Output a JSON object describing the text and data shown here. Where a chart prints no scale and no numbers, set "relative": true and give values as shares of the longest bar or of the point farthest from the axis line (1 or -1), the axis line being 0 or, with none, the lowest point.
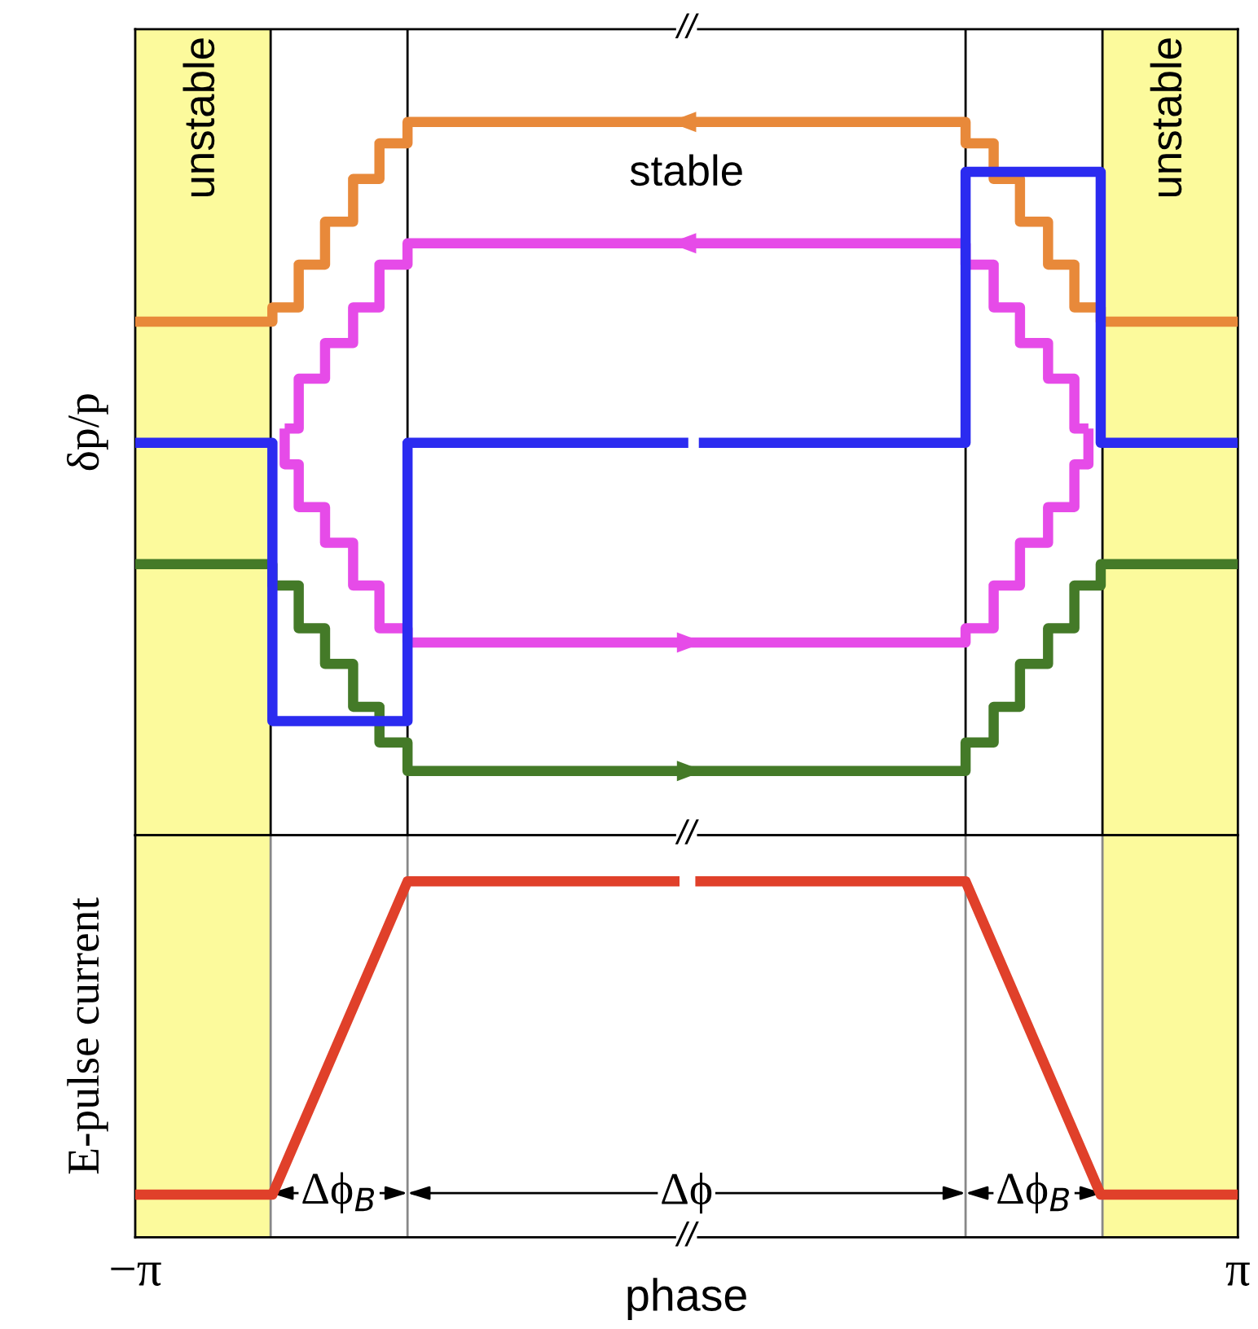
{
  "chart_data": [
    {
      "type": "line",
      "ylabel": "δp/p",
      "relative": true,
      "xlim": [
        -3.1416,
        3.1416
      ],
      "tick_labels": false,
      "series": [
        {
          "color": "#e8893a",
          "x": [
            3.1416,
            2.36,
            2.36,
            2.21,
            2.21,
            2.06,
            2.06,
            1.9,
            1.9,
            1.75,
            1.75,
            1.59,
            1.59,
            -1.59,
            -1.59,
            -1.75,
            -1.75,
            -1.9,
            -1.9,
            -2.06,
            -2.06,
            -2.21,
            -2.21,
            -2.36,
            -2.36,
            -3.1416
          ],
          "values": [
            0.72,
            0.72,
            0.74,
            0.74,
            0.8,
            0.8,
            0.86,
            0.86,
            0.92,
            0.92,
            0.97,
            0.97,
            1.0,
            1.0,
            0.97,
            0.97,
            0.92,
            0.92,
            0.86,
            0.86,
            0.8,
            0.8,
            0.74,
            0.74,
            0.72,
            0.72
          ]
        },
        {
          "color": "#e64be8",
          "x": [
            1.59,
            -1.59,
            -1.59,
            -1.75,
            -1.75,
            -1.9,
            -1.9,
            -2.06,
            -2.06,
            -2.21,
            -2.21,
            -2.29
          ],
          "values": [
            0.83,
            0.83,
            0.8,
            0.8,
            0.74,
            0.74,
            0.69,
            0.69,
            0.64,
            0.64,
            0.57,
            0.57
          ]
        },
        {
          "color": "#e64be8",
          "x": [
            -2.29,
            -2.29,
            -2.21,
            -2.21,
            -2.06,
            -2.06,
            -1.9,
            -1.9,
            -1.75,
            -1.75,
            -1.59,
            -1.59,
            1.59,
            1.59,
            1.75,
            1.75,
            1.9,
            1.9,
            2.06,
            2.06,
            2.21,
            2.21,
            2.29,
            2.29
          ],
          "values": [
            0.57,
            0.52,
            0.52,
            0.46,
            0.46,
            0.41,
            0.41,
            0.35,
            0.35,
            0.29,
            0.29,
            0.27,
            0.27,
            0.29,
            0.29,
            0.35,
            0.35,
            0.41,
            0.41,
            0.46,
            0.46,
            0.52,
            0.52,
            0.57
          ]
        },
        {
          "color": "#e64be8",
          "x": [
            2.29,
            2.21,
            2.21,
            2.06,
            2.06,
            1.9,
            1.9,
            1.75,
            1.75,
            1.59,
            1.59
          ],
          "values": [
            0.57,
            0.57,
            0.64,
            0.64,
            0.69,
            0.69,
            0.74,
            0.74,
            0.8,
            0.8,
            0.83
          ]
        },
        {
          "color": "#447a28",
          "x": [
            -3.1416,
            -2.36,
            -2.36,
            -2.21,
            -2.21,
            -2.06,
            -2.06,
            -1.9,
            -1.9,
            -1.75,
            -1.75,
            -1.59,
            -1.59,
            1.59,
            1.59,
            1.75,
            1.75,
            1.9,
            1.9,
            2.06,
            2.06,
            2.21,
            2.21,
            2.36,
            2.36,
            3.1416
          ],
          "values": [
            0.38,
            0.38,
            0.35,
            0.35,
            0.29,
            0.29,
            0.24,
            0.24,
            0.18,
            0.18,
            0.13,
            0.13,
            0.09,
            0.09,
            0.13,
            0.13,
            0.18,
            0.18,
            0.24,
            0.24,
            0.29,
            0.29,
            0.35,
            0.35,
            0.38,
            0.38
          ]
        },
        {
          "color": "#2b2bf0",
          "x": [
            -3.1416,
            -2.36,
            -2.36,
            -1.59,
            -1.59,
            0.01,
            0.04,
            0.07,
            1.59,
            1.59,
            2.36,
            2.36,
            3.1416
          ],
          "values": [
            0.55,
            0.55,
            0.16,
            0.16,
            0.55,
            0.55,
            null,
            0.55,
            0.55,
            0.93,
            0.93,
            0.55,
            0.55
          ]
        }
      ],
      "bands": [
        {
          "axis": "x",
          "from": -3.1416,
          "to": -2.37,
          "label": "unstable",
          "color": "#fcfa9c"
        },
        {
          "axis": "x",
          "from": 2.37,
          "to": 3.1416,
          "label": "unstable",
          "color": "#fcfa9c"
        }
      ],
      "ref_lines": [
        {
          "axis": "x",
          "value": -2.37,
          "color": "#000000"
        },
        {
          "axis": "x",
          "value": -1.59,
          "color": "#000000"
        },
        {
          "axis": "x",
          "value": 1.59,
          "color": "#000000"
        },
        {
          "axis": "x",
          "value": 2.37,
          "color": "#000000"
        }
      ],
      "annotations": [
        "//",
        "stable"
      ]
    },
    {
      "type": "line",
      "ylabel": "E-pulse current",
      "xlabel": "phase",
      "relative": true,
      "xlim": [
        -3.1416,
        3.1416
      ],
      "xticks": [
        {
          "value": -3.1416,
          "label": "−π"
        },
        {
          "value": 3.1416,
          "label": "π"
        }
      ],
      "tick_labels": "x",
      "series": [
        {
          "color": "#e0402a",
          "x": [
            -3.1416,
            -2.36,
            -1.59,
            -0.04,
            0.0,
            0.05,
            1.59,
            2.36,
            3.1416
          ],
          "values": [
            0.12,
            0.12,
            1.0,
            1.0,
            null,
            1.0,
            1.0,
            0.12,
            0.12
          ]
        }
      ],
      "bands": [
        {
          "axis": "x",
          "from": -3.1416,
          "to": -2.37,
          "color": "#fcfa9c"
        },
        {
          "axis": "x",
          "from": 2.37,
          "to": 3.1416,
          "color": "#fcfa9c"
        }
      ],
      "ref_lines": [
        {
          "axis": "x",
          "value": -2.37,
          "color": "#888888"
        },
        {
          "axis": "x",
          "value": -1.59,
          "color": "#888888"
        },
        {
          "axis": "x",
          "value": 1.59,
          "color": "#888888"
        },
        {
          "axis": "x",
          "value": 2.37,
          "color": "#888888"
        }
      ],
      "annotations": [
        "//",
        "//",
        "Δϕ$_{B}$",
        "Δϕ",
        "Δϕ$_{B}$"
      ]
    }
  ]
}
